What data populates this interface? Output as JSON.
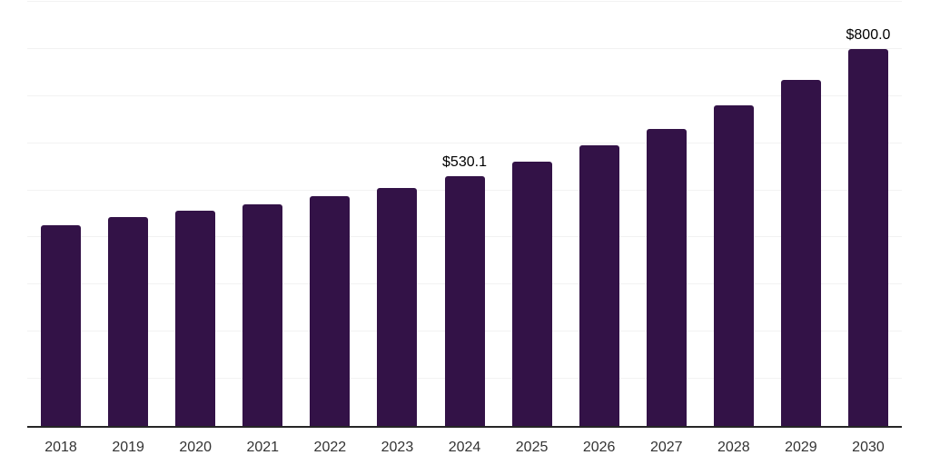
{
  "chart_data": {
    "type": "bar",
    "title": "",
    "xlabel": "",
    "ylabel": "",
    "categories": [
      "2018",
      "2019",
      "2020",
      "2021",
      "2022",
      "2023",
      "2024",
      "2025",
      "2026",
      "2027",
      "2028",
      "2029",
      "2030"
    ],
    "values": [
      425.0,
      443.0,
      457.0,
      470.0,
      487.0,
      504.0,
      530.1,
      560.0,
      595.0,
      631.0,
      680.0,
      735.0,
      800.0
    ],
    "data_labels": [
      null,
      null,
      null,
      null,
      null,
      null,
      "$530.1",
      null,
      null,
      null,
      null,
      null,
      "$800.0"
    ],
    "ylim": [
      0,
      900
    ],
    "grid_step": 100,
    "grid": true,
    "legend": false,
    "y_axis_labels_visible": false,
    "colors": {
      "bar": "#331247",
      "axis": "#262626",
      "gridline": "#f2f2f2",
      "tick_label": "#333333",
      "data_label": "#000000",
      "background": "#ffffff"
    }
  }
}
